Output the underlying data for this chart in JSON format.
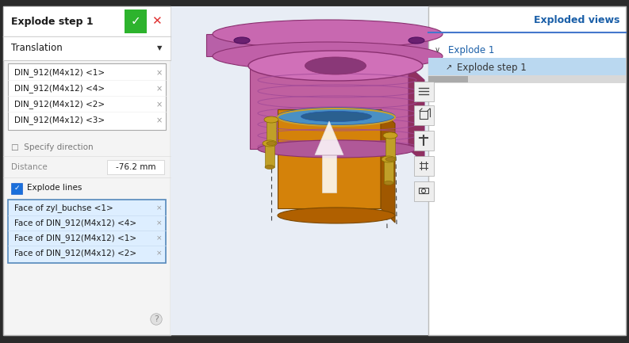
{
  "bg_color": "#2a2a2a",
  "left_panel_bg": "#f5f5f5",
  "title_text": "Explode step 1",
  "green_btn_color": "#2db32d",
  "red_x_color": "#e03030",
  "translation_text": "Translation",
  "din_items": [
    "DIN_912(M4x12) <1>",
    "DIN_912(M4x12) <4>",
    "DIN_912(M4x12) <2>",
    "DIN_912(M4x12) <3>"
  ],
  "specify_direction_text": "Specify direction",
  "distance_text": "Distance",
  "distance_value": "-76.2 mm",
  "explode_lines_text": "Explode lines",
  "face_items": [
    "Face of zyl_buchse <1>",
    "Face of DIN_912(M4x12) <4>",
    "Face of DIN_912(M4x12) <1>",
    "Face of DIN_912(M4x12) <2>"
  ],
  "right_panel_title": "Exploded views",
  "tree_item1": "Explode 1",
  "tree_item2": "Explode step 1",
  "orange_color": "#d4820a",
  "blue_cap_color": "#4a90c4",
  "purple_color": "#c060a0",
  "purple_dark": "#8a3070",
  "purple_light": "#d878b8",
  "yellow_bolt": "#c8a830",
  "yellow_bolt_dark": "#8a7020",
  "blue_text_color": "#1a5fa8",
  "selected_row_bg": "#bad8f0",
  "face_list_bg": "#ddeeff",
  "face_list_border": "#5588bb",
  "panel_border": "#cccccc",
  "model_bg": "#e8edf5"
}
